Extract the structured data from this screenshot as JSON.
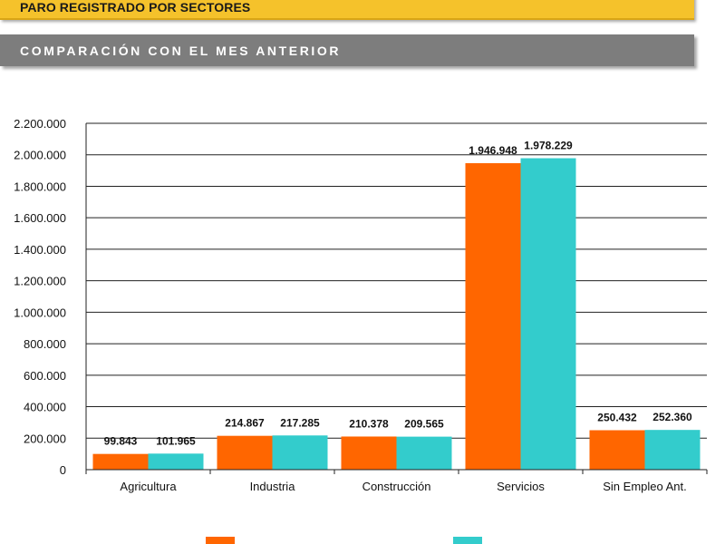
{
  "header": {
    "title": "PARO REGISTRADO POR SECTORES",
    "subtitle": "COMPARACIÓN CON EL MES ANTERIOR"
  },
  "colors": {
    "banner_yellow": "#f5c22b",
    "banner_gray": "#7d7d7d",
    "series_1": "#ff6600",
    "series_2": "#33cccc"
  },
  "chart_data": {
    "type": "bar",
    "categories": [
      "Agricultura",
      "Industria",
      "Construcción",
      "Servicios",
      "Sin Empleo Ant."
    ],
    "series": [
      {
        "values": [
          99843,
          214867,
          210378,
          1946948,
          250432
        ],
        "labels": [
          "99.843",
          "214.867",
          "210.378",
          "1.946.948",
          "250.432"
        ],
        "color": "#ff6600"
      },
      {
        "values": [
          101965,
          217285,
          209565,
          1978229,
          252360
        ],
        "labels": [
          "101.965",
          "217.285",
          "209.565",
          "1.978.229",
          "252.360"
        ],
        "color": "#33cccc"
      }
    ],
    "ylim": [
      0,
      2200000
    ],
    "yticks": [
      0,
      200000,
      400000,
      600000,
      800000,
      1000000,
      1200000,
      1400000,
      1600000,
      1800000,
      2000000,
      2200000
    ],
    "ytick_labels": [
      "0",
      "200.000",
      "400.000",
      "600.000",
      "800.000",
      "1.000.000",
      "1.200.000",
      "1.400.000",
      "1.600.000",
      "1.800.000",
      "2.000.000",
      "2.200.000"
    ],
    "grid": true,
    "legend": "bottom"
  }
}
